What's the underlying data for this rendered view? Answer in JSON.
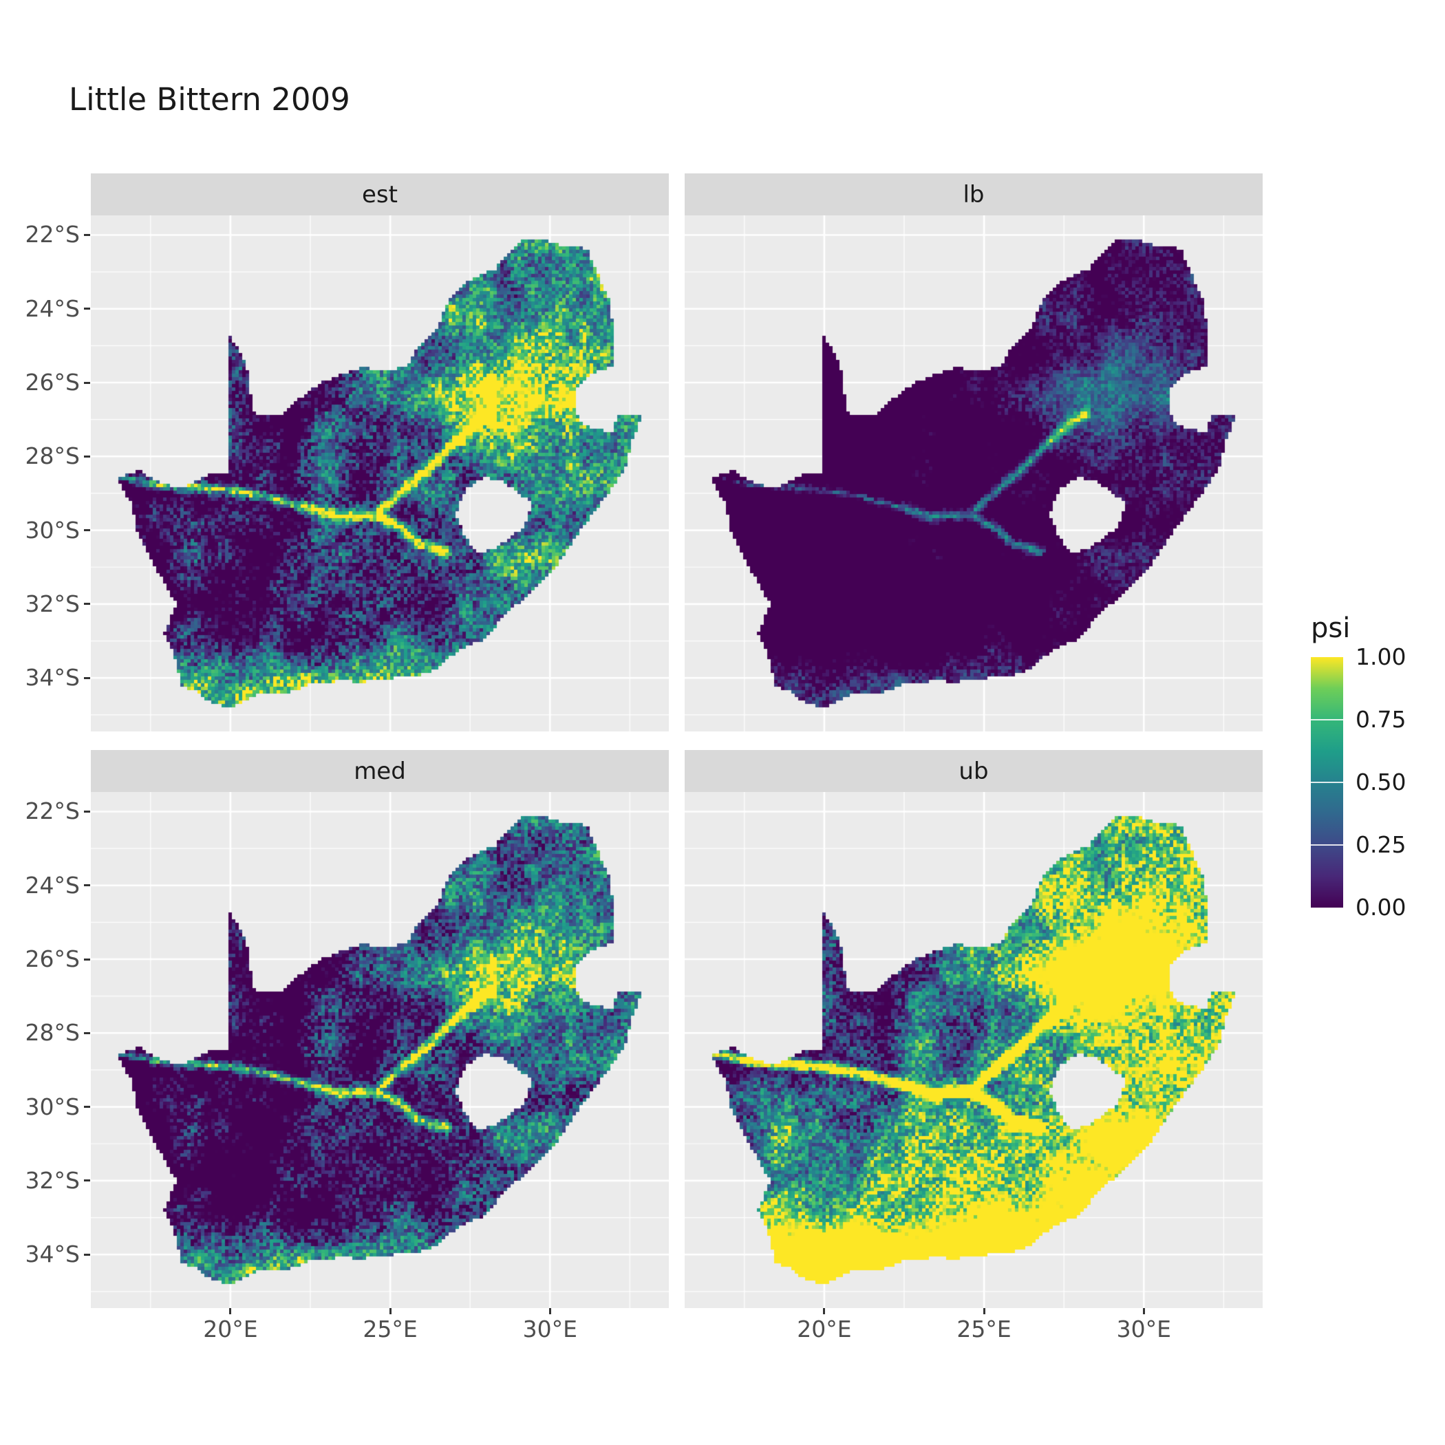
{
  "chart_data": {
    "type": "heatmap",
    "title": "Little Bittern 2009",
    "facets": [
      {
        "label": "est",
        "psi_level": "mixed, high in northeast and south coast"
      },
      {
        "label": "lb",
        "psi_level": "mostly near zero, moderate in northeast"
      },
      {
        "label": "med",
        "psi_level": "mixed, slightly lower than est"
      },
      {
        "label": "ub",
        "psi_level": "mostly near one in south and east, low in northwest"
      }
    ],
    "x_axis": {
      "tick_values": [
        20,
        25,
        30
      ],
      "tick_labels": [
        "20°E",
        "25°E",
        "30°E"
      ],
      "minor_ticks": [
        17.5,
        22.5,
        27.5,
        32.5
      ],
      "range": [
        15.63,
        33.72
      ]
    },
    "y_axis": {
      "tick_values": [
        -22,
        -24,
        -26,
        -28,
        -30,
        -32,
        -34
      ],
      "tick_labels": [
        "22°S",
        "24°S",
        "26°S",
        "28°S",
        "30°S",
        "32°S",
        "34°S"
      ],
      "minor_ticks": [
        -23,
        -25,
        -27,
        -29,
        -31,
        -33,
        -35
      ],
      "range": [
        -35.45,
        -21.47
      ]
    },
    "legend": {
      "title": "psi",
      "tick_labels": [
        "1.00",
        "0.75",
        "0.50",
        "0.25",
        "0.00"
      ],
      "tick_values": [
        1,
        0.75,
        0.5,
        0.25,
        0
      ],
      "bar_tick_values": [
        0.75,
        0.5,
        0.25
      ],
      "viridis_stops": [
        [
          0,
          "#440154"
        ],
        [
          0.125,
          "#482878"
        ],
        [
          0.25,
          "#3e4a89"
        ],
        [
          0.375,
          "#31688e"
        ],
        [
          0.5,
          "#26828e"
        ],
        [
          0.625,
          "#1f9e89"
        ],
        [
          0.75,
          "#35b779"
        ],
        [
          0.875,
          "#6ece58"
        ],
        [
          1,
          "#fde725"
        ]
      ]
    },
    "colors": {
      "panel_bg": "#ebebeb",
      "strip_bg": "#d9d9d9",
      "grid": "#ffffff",
      "axis_text": "#4d4d4d",
      "tick_mark": "#333333",
      "title_text": "#1a1a1a"
    },
    "map": {
      "outline": [
        [
          16.45,
          -28.58
        ],
        [
          17.15,
          -28.4
        ],
        [
          17.85,
          -28.76
        ],
        [
          18.55,
          -28.86
        ],
        [
          19.3,
          -28.52
        ],
        [
          19.98,
          -28.42
        ],
        [
          19.98,
          -24.76
        ],
        [
          20.35,
          -25.25
        ],
        [
          20.58,
          -25.85
        ],
        [
          20.64,
          -26.45
        ],
        [
          20.76,
          -26.84
        ],
        [
          21.6,
          -26.86
        ],
        [
          22.25,
          -26.38
        ],
        [
          22.9,
          -26.0
        ],
        [
          23.45,
          -25.78
        ],
        [
          24.15,
          -25.6
        ],
        [
          24.85,
          -25.72
        ],
        [
          25.55,
          -25.55
        ],
        [
          25.95,
          -24.95
        ],
        [
          26.45,
          -24.62
        ],
        [
          26.85,
          -23.75
        ],
        [
          27.55,
          -23.2
        ],
        [
          28.3,
          -22.92
        ],
        [
          29.05,
          -22.18
        ],
        [
          29.68,
          -22.12
        ],
        [
          30.4,
          -22.32
        ],
        [
          31.15,
          -22.38
        ],
        [
          31.55,
          -23.2
        ],
        [
          31.9,
          -23.85
        ],
        [
          31.98,
          -24.8
        ],
        [
          31.95,
          -25.55
        ],
        [
          31.35,
          -25.72
        ],
        [
          30.82,
          -26.12
        ],
        [
          30.78,
          -26.85
        ],
        [
          31.05,
          -27.12
        ],
        [
          31.5,
          -27.3
        ],
        [
          31.96,
          -27.31
        ],
        [
          32.12,
          -26.86
        ],
        [
          32.89,
          -26.85
        ],
        [
          32.55,
          -27.6
        ],
        [
          32.33,
          -28.35
        ],
        [
          31.73,
          -29.1
        ],
        [
          31.05,
          -29.88
        ],
        [
          30.25,
          -30.9
        ],
        [
          29.45,
          -31.6
        ],
        [
          28.6,
          -32.3
        ],
        [
          27.9,
          -32.95
        ],
        [
          27.05,
          -33.3
        ],
        [
          26.45,
          -33.76
        ],
        [
          25.65,
          -33.98
        ],
        [
          24.9,
          -34.0
        ],
        [
          24.15,
          -34.1
        ],
        [
          23.35,
          -34.08
        ],
        [
          22.55,
          -34.15
        ],
        [
          21.7,
          -34.42
        ],
        [
          20.8,
          -34.46
        ],
        [
          20.0,
          -34.82
        ],
        [
          19.35,
          -34.62
        ],
        [
          18.95,
          -34.38
        ],
        [
          18.46,
          -34.2
        ],
        [
          18.3,
          -33.5
        ],
        [
          17.95,
          -32.8
        ],
        [
          18.32,
          -32.0
        ],
        [
          17.85,
          -31.3
        ],
        [
          17.1,
          -30.1
        ],
        [
          16.95,
          -29.35
        ]
      ],
      "lesotho_hole": [
        [
          27.02,
          -29.58
        ],
        [
          27.38,
          -28.88
        ],
        [
          27.92,
          -28.56
        ],
        [
          28.38,
          -28.62
        ],
        [
          28.95,
          -28.9
        ],
        [
          29.45,
          -29.3
        ],
        [
          29.18,
          -29.92
        ],
        [
          28.4,
          -30.45
        ],
        [
          27.75,
          -30.66
        ],
        [
          27.35,
          -30.2
        ]
      ],
      "rivers": [
        [
          [
            16.6,
            -28.55
          ],
          [
            17.6,
            -28.75
          ],
          [
            18.8,
            -28.82
          ],
          [
            20.0,
            -28.9
          ],
          [
            21.2,
            -29.1
          ],
          [
            22.3,
            -29.35
          ],
          [
            23.4,
            -29.62
          ],
          [
            24.55,
            -29.58
          ],
          [
            25.3,
            -29.9
          ],
          [
            25.9,
            -30.35
          ],
          [
            26.75,
            -30.55
          ]
        ],
        [
          [
            24.55,
            -29.58
          ],
          [
            25.35,
            -28.95
          ],
          [
            26.1,
            -28.4
          ],
          [
            26.85,
            -27.75
          ],
          [
            27.6,
            -27.15
          ],
          [
            28.15,
            -26.85
          ]
        ]
      ]
    }
  }
}
